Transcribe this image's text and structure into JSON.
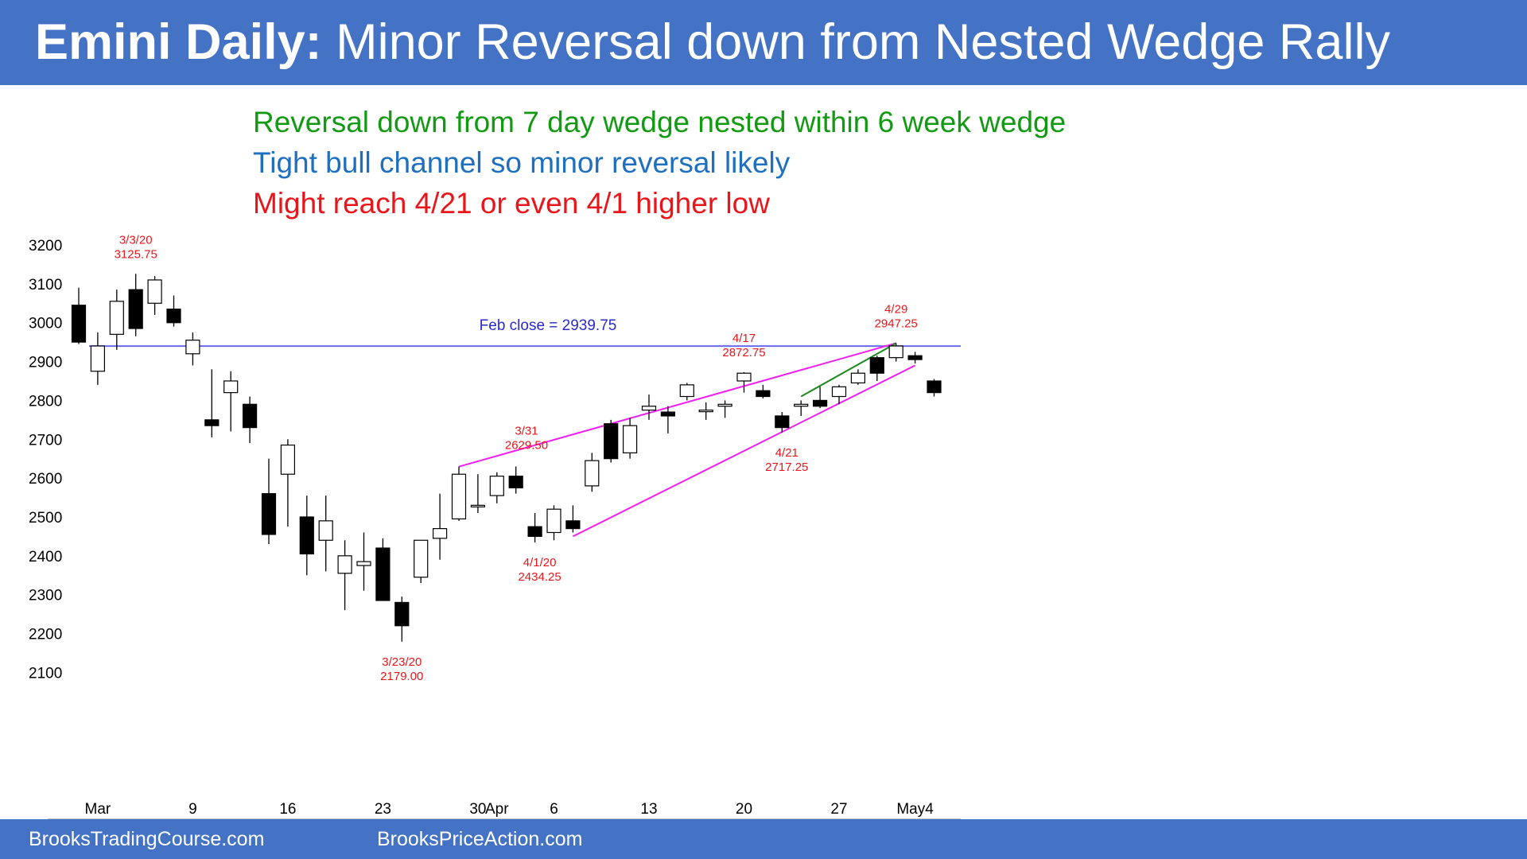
{
  "header": {
    "title_bold": "Emini Daily:",
    "title_rest": " Minor Reversal down from Nested Wedge Rally"
  },
  "notes": [
    {
      "text": "Reversal down from 7 day wedge nested within 6 week wedge",
      "color": "#129A12"
    },
    {
      "text": "Tight bull channel so minor reversal likely",
      "color": "#1F6FBF"
    },
    {
      "text": "Might reach 4/21 or even 4/1 higher low",
      "color": "#E8161B"
    }
  ],
  "footer": {
    "left": "BrooksTradingCourse.com",
    "right": "BrooksPriceAction.com"
  },
  "colors": {
    "title_bar": "#4472C4",
    "annotation_red": "#E8161B",
    "feb_close_line": "#6A6AF0",
    "feb_close_text": "#2A2AC8",
    "wedge_line": "#F01EF0",
    "nested_wedge_line": "#1E8A1E",
    "bear_candle": "#000000",
    "bull_candle": "#ffffff"
  },
  "chart_data": {
    "type": "candlestick",
    "ylim": [
      2050,
      3250
    ],
    "yticks": [
      3200,
      3100,
      3000,
      2900,
      2800,
      2700,
      2600,
      2500,
      2400,
      2300,
      2200,
      2100
    ],
    "xticks": [
      {
        "index": 1,
        "label": "Mar"
      },
      {
        "index": 6,
        "label": "9"
      },
      {
        "index": 11,
        "label": "16"
      },
      {
        "index": 16,
        "label": "23"
      },
      {
        "index": 21,
        "label": "30"
      },
      {
        "index": 22,
        "label": "Apr"
      },
      {
        "index": 25,
        "label": "6"
      },
      {
        "index": 30,
        "label": "13"
      },
      {
        "index": 35,
        "label": "20"
      },
      {
        "index": 40,
        "label": "27"
      },
      {
        "index": 44,
        "label": "May4"
      }
    ],
    "candles": [
      {
        "o": 3045,
        "h": 3090,
        "l": 2945,
        "c": 2950
      },
      {
        "o": 2875,
        "h": 2975,
        "l": 2840,
        "c": 2940
      },
      {
        "o": 2970,
        "h": 3085,
        "l": 2930,
        "c": 3055
      },
      {
        "o": 3085,
        "h": 3125.75,
        "l": 2965,
        "c": 2985
      },
      {
        "o": 3050,
        "h": 3120,
        "l": 3020,
        "c": 3110
      },
      {
        "o": 3035,
        "h": 3070,
        "l": 2990,
        "c": 3000
      },
      {
        "o": 2920,
        "h": 2975,
        "l": 2890,
        "c": 2955
      },
      {
        "o": 2750,
        "h": 2880,
        "l": 2705,
        "c": 2735
      },
      {
        "o": 2820,
        "h": 2875,
        "l": 2720,
        "c": 2850
      },
      {
        "o": 2790,
        "h": 2810,
        "l": 2690,
        "c": 2730
      },
      {
        "o": 2560,
        "h": 2650,
        "l": 2430,
        "c": 2455
      },
      {
        "o": 2610,
        "h": 2700,
        "l": 2475,
        "c": 2685
      },
      {
        "o": 2500,
        "h": 2555,
        "l": 2350,
        "c": 2405
      },
      {
        "o": 2440,
        "h": 2555,
        "l": 2360,
        "c": 2490
      },
      {
        "o": 2355,
        "h": 2440,
        "l": 2260,
        "c": 2400
      },
      {
        "o": 2375,
        "h": 2460,
        "l": 2310,
        "c": 2385
      },
      {
        "o": 2420,
        "h": 2445,
        "l": 2290,
        "c": 2285
      },
      {
        "o": 2280,
        "h": 2295,
        "l": 2179,
        "c": 2220
      },
      {
        "o": 2345,
        "h": 2440,
        "l": 2330,
        "c": 2440
      },
      {
        "o": 2445,
        "h": 2560,
        "l": 2390,
        "c": 2470
      },
      {
        "o": 2495,
        "h": 2629.5,
        "l": 2490,
        "c": 2610
      },
      {
        "o": 2530,
        "h": 2610,
        "l": 2510,
        "c": 2530
      },
      {
        "o": 2555,
        "h": 2615,
        "l": 2535,
        "c": 2605
      },
      {
        "o": 2605,
        "h": 2630,
        "l": 2560,
        "c": 2575
      },
      {
        "o": 2475,
        "h": 2510,
        "l": 2434.25,
        "c": 2450
      },
      {
        "o": 2460,
        "h": 2530,
        "l": 2440,
        "c": 2520
      },
      {
        "o": 2490,
        "h": 2530,
        "l": 2460,
        "c": 2470
      },
      {
        "o": 2580,
        "h": 2665,
        "l": 2565,
        "c": 2645
      },
      {
        "o": 2740,
        "h": 2750,
        "l": 2640,
        "c": 2650
      },
      {
        "o": 2665,
        "h": 2755,
        "l": 2650,
        "c": 2735
      },
      {
        "o": 2775,
        "h": 2815,
        "l": 2750,
        "c": 2785
      },
      {
        "o": 2770,
        "h": 2785,
        "l": 2715,
        "c": 2760
      },
      {
        "o": 2810,
        "h": 2845,
        "l": 2800,
        "c": 2840
      },
      {
        "o": 2775,
        "h": 2795,
        "l": 2750,
        "c": 2775
      },
      {
        "o": 2785,
        "h": 2800,
        "l": 2755,
        "c": 2790
      },
      {
        "o": 2850,
        "h": 2872.75,
        "l": 2820,
        "c": 2870
      },
      {
        "o": 2825,
        "h": 2840,
        "l": 2805,
        "c": 2810
      },
      {
        "o": 2760,
        "h": 2770,
        "l": 2717.25,
        "c": 2730
      },
      {
        "o": 2785,
        "h": 2800,
        "l": 2760,
        "c": 2790
      },
      {
        "o": 2800,
        "h": 2835,
        "l": 2780,
        "c": 2785
      },
      {
        "o": 2810,
        "h": 2840,
        "l": 2790,
        "c": 2835
      },
      {
        "o": 2845,
        "h": 2880,
        "l": 2840,
        "c": 2870
      },
      {
        "o": 2910,
        "h": 2915,
        "l": 2850,
        "c": 2870
      },
      {
        "o": 2910,
        "h": 2947.25,
        "l": 2900,
        "c": 2940
      },
      {
        "o": 2915,
        "h": 2925,
        "l": 2895,
        "c": 2905
      },
      {
        "o": 2850,
        "h": 2855,
        "l": 2810,
        "c": 2820
      }
    ],
    "feb_close": {
      "value": 2939.75,
      "label": "Feb close = 2939.75"
    },
    "annotations": [
      {
        "line1": "3/3/20",
        "line2": "3125.75",
        "index": 3,
        "pos": "above",
        "value": 3125.75
      },
      {
        "line1": "3/23/20",
        "line2": "2179.00",
        "index": 17,
        "pos": "below",
        "value": 2179
      },
      {
        "line1": "3/31",
        "line2": "2629.50",
        "index": 20,
        "pos": "side",
        "value": 2629.5
      },
      {
        "line1": "4/1/20",
        "line2": "2434.25",
        "index": 24,
        "pos": "below",
        "value": 2434.25
      },
      {
        "line1": "4/17",
        "line2": "2872.75",
        "index": 35,
        "pos": "above",
        "value": 2872.75
      },
      {
        "line1": "4/21",
        "line2": "2717.25",
        "index": 37,
        "pos": "below",
        "value": 2717.25
      },
      {
        "line1": "4/29",
        "line2": "2947.25",
        "index": 43,
        "pos": "above",
        "value": 2947.25
      }
    ],
    "wedge_lines": [
      {
        "from": {
          "index": 20,
          "value": 2629.5
        },
        "to": {
          "index": 43,
          "value": 2947.25
        },
        "kind": "outer"
      },
      {
        "from": {
          "index": 26,
          "value": 2450
        },
        "to": {
          "index": 44,
          "value": 2890
        },
        "kind": "outer"
      },
      {
        "from": {
          "index": 38,
          "value": 2810
        },
        "to": {
          "index": 43,
          "value": 2947.25
        },
        "kind": "nested"
      }
    ]
  }
}
